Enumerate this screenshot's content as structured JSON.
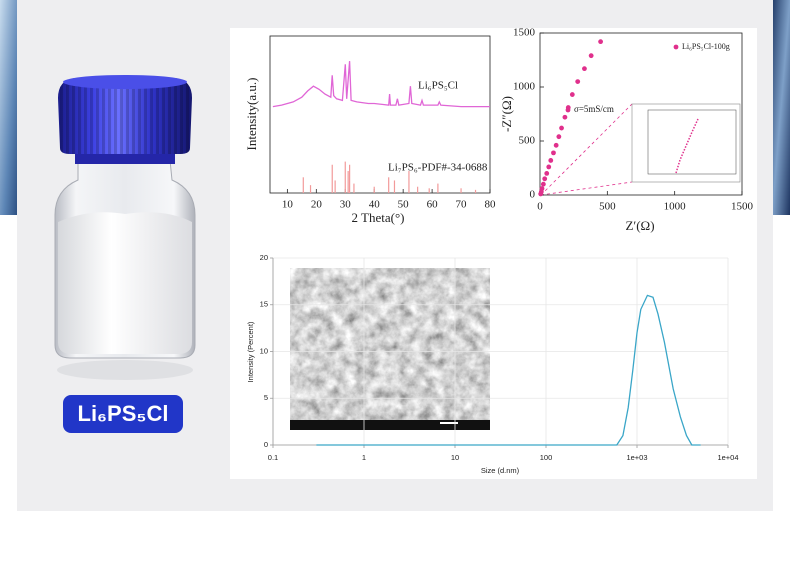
{
  "product_label": "Li₆PS₅Cl",
  "chart_data": [
    {
      "type": "line",
      "y_label": "Intensity(a.u.)",
      "x_label": "2 Theta(°)",
      "xlim": [
        4,
        80
      ],
      "ylim": [
        0,
        100
      ],
      "xticks": [
        10,
        20,
        30,
        40,
        50,
        60,
        70,
        80
      ],
      "series": [
        {
          "name": "Li₆PS₅Cl",
          "color": "#e066d6",
          "x": [
            5,
            8,
            12,
            15,
            17,
            19,
            21,
            23,
            25,
            25.5,
            26,
            27,
            29,
            30,
            30.5,
            31.5,
            32,
            34,
            38,
            40,
            45,
            45.3,
            45.6,
            47.5,
            48,
            48.5,
            52,
            52.5,
            53,
            56,
            56.5,
            57,
            62,
            62.5,
            63,
            70,
            75,
            80
          ],
          "values": [
            55,
            56,
            58,
            61,
            65,
            68,
            66,
            63,
            61,
            75,
            62,
            60,
            59,
            82,
            60,
            84,
            59,
            58,
            57,
            57,
            56,
            63,
            56,
            56,
            60,
            56,
            57,
            68,
            57,
            56,
            59,
            56,
            56,
            58,
            56,
            55,
            55,
            55
          ]
        }
      ],
      "reference": {
        "name": "Li₇PS₆-PDF#-34-0688",
        "color": "#f29a9a",
        "x": [
          15.5,
          18,
          25.5,
          26.5,
          30,
          31,
          31.5,
          33,
          40,
          45,
          47,
          52,
          55,
          59,
          62,
          70,
          75
        ],
        "values": [
          10,
          5,
          18,
          8,
          20,
          14,
          18,
          6,
          4,
          10,
          8,
          14,
          4,
          3,
          6,
          3,
          2
        ]
      }
    },
    {
      "type": "scatter",
      "y_label": "-Z″(Ω)",
      "x_label": "Z′(Ω)",
      "xlim": [
        0,
        1500
      ],
      "ylim": [
        0,
        1500
      ],
      "xticks": [
        0,
        500,
        1000,
        1500
      ],
      "yticks": [
        0,
        500,
        1000,
        1500
      ],
      "annotation": "σ=5mS/cm",
      "series": [
        {
          "name": "Li₆PS₅Cl-100g",
          "color": "#e0308c",
          "x": [
            5,
            10,
            15,
            25,
            35,
            50,
            65,
            80,
            100,
            120,
            140,
            160,
            185,
            210,
            240,
            280,
            330,
            380,
            450
          ],
          "values": [
            10,
            30,
            60,
            100,
            150,
            200,
            260,
            320,
            390,
            460,
            540,
            620,
            720,
            810,
            930,
            1050,
            1170,
            1290,
            1420
          ]
        }
      ]
    },
    {
      "type": "line",
      "x_scale": "log",
      "grid": true,
      "y_label": "Intensity (Percent)",
      "x_label": "Size (d.nm)",
      "xlim": [
        0.1,
        10000
      ],
      "ylim": [
        0,
        20
      ],
      "xticks": [
        0.1,
        1,
        10,
        100,
        {
          "value": 1000,
          "label": "1e+03"
        },
        {
          "value": 10000,
          "label": "1e+04"
        }
      ],
      "yticks": [
        0,
        5,
        10,
        15,
        20
      ],
      "series": [
        {
          "color": "#3aa6c8",
          "x": [
            0.3,
            1,
            10,
            100,
            600,
            700,
            800,
            900,
            1000,
            1100,
            1300,
            1500,
            1700,
            2000,
            2500,
            3000,
            3500,
            4000,
            5000
          ],
          "values": [
            0,
            0,
            0,
            0,
            0,
            1,
            4,
            8,
            12,
            14.5,
            16,
            15.8,
            14,
            11,
            6,
            3,
            1,
            0,
            0
          ]
        }
      ]
    }
  ]
}
